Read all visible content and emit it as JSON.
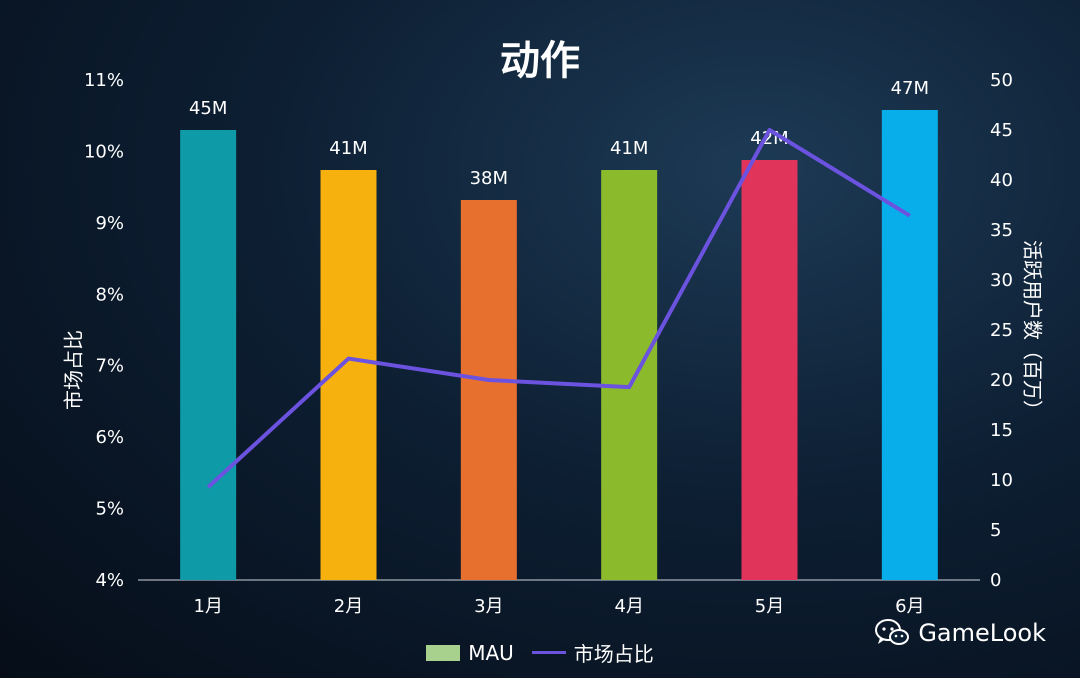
{
  "chart_data": {
    "type": "bar",
    "title": "动作",
    "categories": [
      "1月",
      "2月",
      "3月",
      "4月",
      "5月",
      "6月"
    ],
    "series": [
      {
        "name": "MAU",
        "type": "bar",
        "axis": "right",
        "values": [
          45,
          41,
          38,
          41,
          42,
          47
        ],
        "data_labels": [
          "45M",
          "41M",
          "38M",
          "41M",
          "42M",
          "47M"
        ],
        "colors": [
          "#0e9aa7",
          "#f6b10f",
          "#e8702f",
          "#8bbb2c",
          "#e0345a",
          "#08aeea"
        ]
      },
      {
        "name": "市场占比",
        "type": "line",
        "axis": "left",
        "color": "#6b53e0",
        "values": [
          5.3,
          7.1,
          6.8,
          6.7,
          10.3,
          9.1
        ]
      }
    ],
    "ylabel_left": "市场占比",
    "ylabel_right": "活跃用户数（百万）",
    "ylim_left": [
      4,
      11
    ],
    "yticks_left": [
      "4%",
      "5%",
      "6%",
      "7%",
      "8%",
      "9%",
      "10%",
      "11%"
    ],
    "ylim_right": [
      0,
      50
    ],
    "yticks_right": [
      "0",
      "5",
      "10",
      "15",
      "20",
      "25",
      "30",
      "35",
      "40",
      "45",
      "50"
    ],
    "legend": {
      "position": "bottom",
      "items": [
        {
          "label": "MAU",
          "swatch": "#a9d18e",
          "kind": "bar"
        },
        {
          "label": "市场占比",
          "swatch": "#6b53e0",
          "kind": "line"
        }
      ]
    },
    "grid": false
  },
  "watermark": {
    "text": "GameLook",
    "icon": "wechat-icon"
  }
}
